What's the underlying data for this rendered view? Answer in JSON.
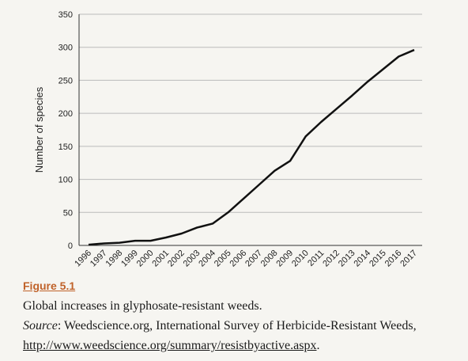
{
  "chart_data": {
    "type": "line",
    "y_label": "Number of species",
    "categories": [
      "1996",
      "1997",
      "1998",
      "1999",
      "2000",
      "2001",
      "2002",
      "2003",
      "2004",
      "2005",
      "2006",
      "2007",
      "2008",
      "2009",
      "2010",
      "2011",
      "2012",
      "2013",
      "2014",
      "2015",
      "2016",
      "2017"
    ],
    "values": [
      1,
      3,
      4,
      7,
      7,
      12,
      18,
      27,
      33,
      50,
      71,
      92,
      113,
      128,
      165,
      187,
      207,
      227,
      248,
      267,
      286,
      296
    ],
    "color": "#111111",
    "ylim": [
      0,
      350
    ],
    "yticks": [
      0,
      50,
      100,
      150,
      200,
      250,
      300,
      350
    ],
    "grid": true
  },
  "figure_label": "Figure 5.1",
  "caption": "Global increases in glyphosate-resistant weeds.",
  "source_label": "Source",
  "source_text": ": Weedscience.org, International Survey of Herbicide-Resistant Weeds,",
  "source_url": "http://www.weedscience.org/summary/resistbyactive.aspx",
  "source_end": "."
}
